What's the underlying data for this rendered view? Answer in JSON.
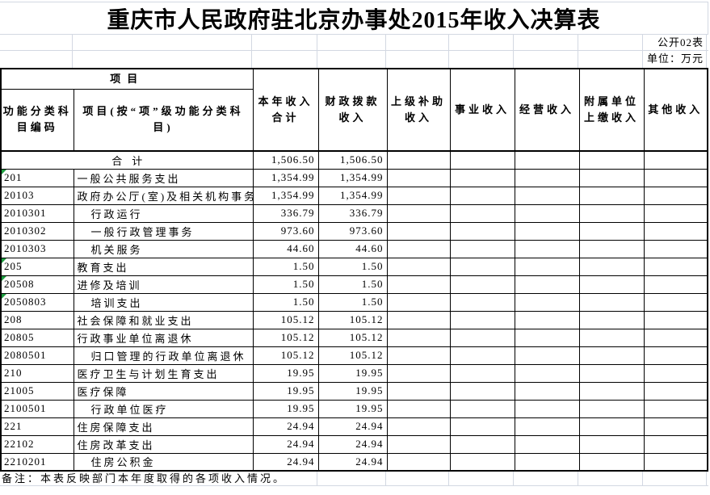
{
  "title": "重庆市人民政府驻北京办事处2015年收入决算表",
  "meta": {
    "table_code": "公开02表",
    "unit": "单位：万元"
  },
  "colors": {
    "grid_line": "#d3d8e2",
    "table_border": "#000000",
    "error_flag_green": "#1e9e40"
  },
  "header": {
    "project_group": "项目",
    "col_code": "功能分类科\n目编码",
    "col_item": "项目(按“项”级功能分类科\n目)",
    "money_cols": [
      "本年收入\n合计",
      "财政拨款\n收入",
      "上级补助\n收入",
      "事业收入",
      "经营收入",
      "附属单位\n上缴收入",
      "其他收入"
    ]
  },
  "total_row": {
    "label": "合计",
    "total": "1,506.50",
    "fiscal": "1,506.50"
  },
  "rows": [
    {
      "code": "201",
      "name": "一般公共服务支出",
      "indent": false,
      "flag": true,
      "total": "1,354.99",
      "fiscal": "1,354.99"
    },
    {
      "code": "20103",
      "name": "政府办公厅(室)及相关机构事务",
      "indent": false,
      "flag": false,
      "total": "1,354.99",
      "fiscal": "1,354.99"
    },
    {
      "code": "2010301",
      "name": "行政运行",
      "indent": true,
      "flag": false,
      "total": "336.79",
      "fiscal": "336.79"
    },
    {
      "code": "2010302",
      "name": "一般行政管理事务",
      "indent": true,
      "flag": false,
      "total": "973.60",
      "fiscal": "973.60"
    },
    {
      "code": "2010303",
      "name": "机关服务",
      "indent": true,
      "flag": false,
      "total": "44.60",
      "fiscal": "44.60"
    },
    {
      "code": "205",
      "name": "教育支出",
      "indent": false,
      "flag": true,
      "total": "1.50",
      "fiscal": "1.50"
    },
    {
      "code": "20508",
      "name": "进修及培训",
      "indent": false,
      "flag": true,
      "total": "1.50",
      "fiscal": "1.50"
    },
    {
      "code": "2050803",
      "name": "培训支出",
      "indent": true,
      "flag": true,
      "total": "1.50",
      "fiscal": "1.50"
    },
    {
      "code": "208",
      "name": "社会保障和就业支出",
      "indent": false,
      "flag": false,
      "total": "105.12",
      "fiscal": "105.12"
    },
    {
      "code": "20805",
      "name": "行政事业单位离退休",
      "indent": false,
      "flag": false,
      "total": "105.12",
      "fiscal": "105.12"
    },
    {
      "code": "2080501",
      "name": "归口管理的行政单位离退休",
      "indent": true,
      "flag": false,
      "total": "105.12",
      "fiscal": "105.12"
    },
    {
      "code": "210",
      "name": "医疗卫生与计划生育支出",
      "indent": false,
      "flag": false,
      "total": "19.95",
      "fiscal": "19.95"
    },
    {
      "code": "21005",
      "name": "医疗保障",
      "indent": false,
      "flag": false,
      "total": "19.95",
      "fiscal": "19.95"
    },
    {
      "code": "2100501",
      "name": "行政单位医疗",
      "indent": true,
      "flag": false,
      "total": "19.95",
      "fiscal": "19.95"
    },
    {
      "code": "221",
      "name": "住房保障支出",
      "indent": false,
      "flag": false,
      "total": "24.94",
      "fiscal": "24.94"
    },
    {
      "code": "22102",
      "name": "住房改革支出",
      "indent": false,
      "flag": false,
      "total": "24.94",
      "fiscal": "24.94"
    },
    {
      "code": "2210201",
      "name": "住房公积金",
      "indent": true,
      "flag": false,
      "total": "24.94",
      "fiscal": "24.94"
    }
  ],
  "note": "备注：本表反映部门本年度取得的各项收入情况。"
}
